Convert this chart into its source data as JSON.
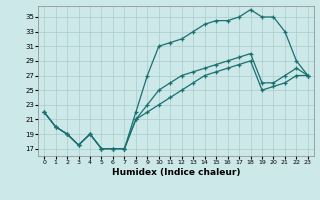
{
  "xlabel": "Humidex (Indice chaleur)",
  "xlim": [
    -0.5,
    23.5
  ],
  "ylim": [
    16,
    36.5
  ],
  "xticks": [
    0,
    1,
    2,
    3,
    4,
    5,
    6,
    7,
    8,
    9,
    10,
    11,
    12,
    13,
    14,
    15,
    16,
    17,
    18,
    19,
    20,
    21,
    22,
    23
  ],
  "yticks": [
    17,
    19,
    21,
    23,
    25,
    27,
    29,
    31,
    33,
    35
  ],
  "bg_color": "#cce8e8",
  "grid_color": "#aacccc",
  "line_color": "#1a7070",
  "line1_x": [
    0,
    1,
    2,
    3,
    4,
    5,
    6,
    7,
    8,
    9,
    10,
    11,
    12,
    13,
    14,
    15,
    16,
    17,
    18,
    19,
    20,
    21,
    22,
    23
  ],
  "line1_y": [
    22,
    20,
    19,
    17.5,
    19,
    17,
    17,
    17,
    22,
    27,
    31,
    31.5,
    32,
    33,
    34,
    34.5,
    34.5,
    35,
    36,
    35,
    35,
    33,
    29,
    27
  ],
  "line2_x": [
    0,
    1,
    2,
    3,
    4,
    5,
    6,
    7,
    8,
    9,
    10,
    11,
    12,
    13,
    14,
    15,
    16,
    17,
    18,
    19,
    20,
    21,
    22,
    23
  ],
  "line2_y": [
    22,
    20,
    19,
    17.5,
    19,
    17,
    17,
    17,
    21,
    22,
    23,
    24,
    25,
    26,
    27,
    27.5,
    28,
    28.5,
    29,
    25,
    25.5,
    26,
    27,
    27
  ],
  "line3_x": [
    0,
    1,
    2,
    3,
    4,
    5,
    6,
    7,
    8,
    9,
    10,
    11,
    12,
    13,
    14,
    15,
    16,
    17,
    18,
    19,
    20,
    21,
    22,
    23
  ],
  "line3_y": [
    22,
    20,
    19,
    17.5,
    19,
    17,
    17,
    17,
    21,
    23,
    25,
    26,
    27,
    27.5,
    28,
    28.5,
    29,
    29.5,
    30,
    26,
    26,
    27,
    28,
    27
  ]
}
